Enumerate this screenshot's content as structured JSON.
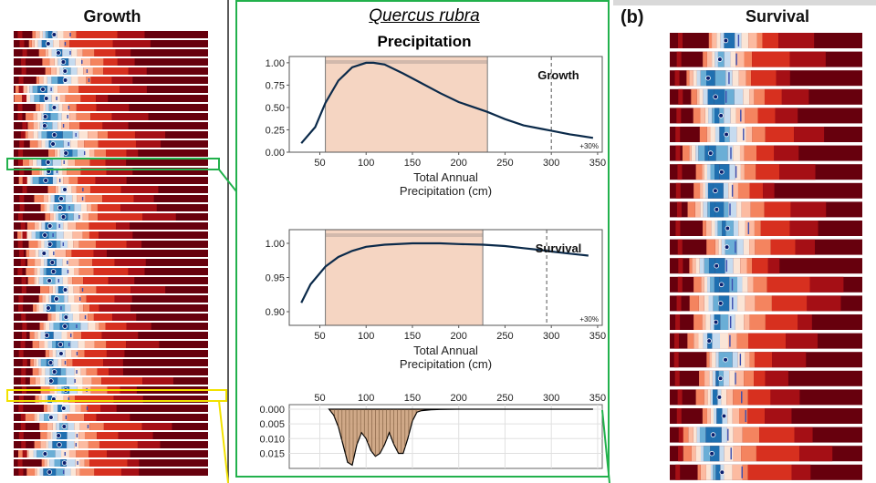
{
  "left_panel": {
    "title": "Growth"
  },
  "right_panel": {
    "label": "(b)",
    "title": "Survival"
  },
  "center": {
    "species": "Quercus rubra",
    "variable": "Precipitation",
    "increase_label": "+30%"
  },
  "colors": {
    "highlight_green": "#22b14c",
    "highlight_yellow": "#f2e200",
    "optimum_band": "#f5d5c2",
    "curve": "#0b2a4a",
    "hist_fill": "#c89a73"
  },
  "strip_palette": [
    "#1f6fb0",
    "#6aaed6",
    "#c6dbef",
    "#fbe5d6",
    "#fcbba1",
    "#f4845f",
    "#d7301f",
    "#a50f15",
    "#67000d"
  ],
  "chart_data": [
    {
      "type": "line",
      "panel": "growth-response",
      "ylabel_annotation": "Growth",
      "xlabel": "Total Annual Precipitation (cm)",
      "x_ticks": [
        "50",
        "100",
        "150",
        "200",
        "250",
        "300",
        "350"
      ],
      "y_ticks": [
        "0.00",
        "0.25",
        "0.50",
        "0.75",
        "1.00"
      ],
      "xlim": [
        17,
        355
      ],
      "ylim": [
        0,
        1.07
      ],
      "optimum_range": [
        56,
        231
      ],
      "reference_x": 300,
      "series": [
        {
          "x": [
            30,
            45,
            56,
            70,
            85,
            100,
            108,
            120,
            140,
            160,
            180,
            200,
            220,
            231,
            250,
            270,
            290,
            300,
            320,
            345
          ],
          "y": [
            0.1,
            0.28,
            0.55,
            0.8,
            0.95,
            1.0,
            1.0,
            0.98,
            0.88,
            0.77,
            0.66,
            0.56,
            0.49,
            0.45,
            0.37,
            0.3,
            0.26,
            0.24,
            0.2,
            0.16
          ]
        }
      ]
    },
    {
      "type": "line",
      "panel": "survival-response",
      "ylabel_annotation": "Survival",
      "xlabel": "Total Annual Precipitation (cm)",
      "x_ticks": [
        "50",
        "100",
        "150",
        "200",
        "250",
        "300",
        "350"
      ],
      "y_ticks": [
        "0.90",
        "0.95",
        "1.00"
      ],
      "xlim": [
        17,
        355
      ],
      "ylim": [
        0.88,
        1.02
      ],
      "optimum_range": [
        56,
        226
      ],
      "reference_x": 295,
      "series": [
        {
          "x": [
            30,
            40,
            56,
            70,
            85,
            100,
            120,
            150,
            180,
            200,
            226,
            250,
            270,
            290,
            300,
            320,
            340
          ],
          "y": [
            0.913,
            0.94,
            0.966,
            0.98,
            0.989,
            0.995,
            0.998,
            1.0,
            1.0,
            0.999,
            0.998,
            0.996,
            0.993,
            0.99,
            0.988,
            0.985,
            0.982
          ]
        }
      ]
    },
    {
      "type": "area",
      "panel": "precipitation-histogram",
      "x_ticks": [
        "50",
        "100",
        "150",
        "200",
        "250",
        "300",
        "350"
      ],
      "y_ticks": [
        "0.000",
        "0.005",
        "0.010",
        "0.015"
      ],
      "xlim": [
        17,
        355
      ],
      "ylim": [
        0,
        0.0195
      ],
      "series": [
        {
          "x": [
            60,
            65,
            70,
            75,
            80,
            85,
            90,
            95,
            100,
            105,
            110,
            115,
            120,
            125,
            130,
            135,
            140,
            145,
            150,
            155,
            160,
            170,
            180,
            200,
            250,
            300,
            345
          ],
          "y": [
            0.0,
            0.002,
            0.006,
            0.012,
            0.018,
            0.019,
            0.012,
            0.008,
            0.01,
            0.014,
            0.016,
            0.015,
            0.012,
            0.008,
            0.012,
            0.015,
            0.015,
            0.01,
            0.004,
            0.001,
            0.0005,
            0.0002,
            0.0001,
            0.0,
            0.0,
            0.0,
            0.0
          ]
        }
      ]
    }
  ]
}
